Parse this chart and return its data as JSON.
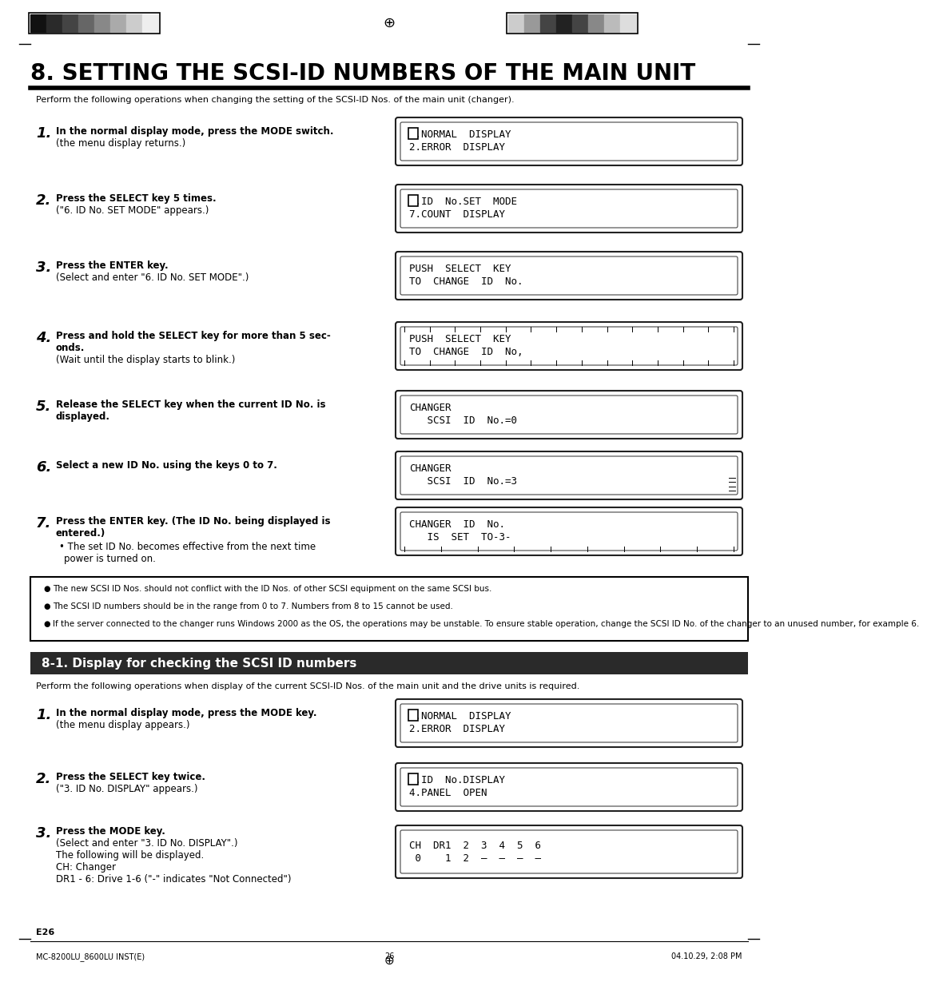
{
  "bg_color": "#ffffff",
  "title": "8. SETTING THE SCSI-ID NUMBERS OF THE MAIN UNIT",
  "subtitle": "Perform the following operations when changing the setting of the SCSI-ID Nos. of the main unit (changer).",
  "notes": [
    "The new SCSI ID Nos. should not conflict with the ID Nos. of other SCSI equipment on the same SCSI bus.",
    "The SCSI ID numbers should be in the range from 0 to 7. Numbers from 8 to 15 cannot be used.",
    "If the server connected to the changer runs Windows 2000 as the OS, the operations may be unstable. To ensure stable operation, change the SCSI ID No. of the changer to an unused number, for example 6."
  ],
  "section2_title": "8-1. Display for checking the SCSI ID numbers",
  "section2_sub": "Perform the following operations when display of the current SCSI-ID Nos. of the main unit and the drive units is required.",
  "footer_left": "MC-8200LU_8600LU INST(E)",
  "footer_center": "26",
  "footer_right": "04.10.29, 2:08 PM",
  "page_label": "E26",
  "bar_colors_left": [
    "#111111",
    "#2a2a2a",
    "#444444",
    "#666666",
    "#888888",
    "#aaaaaa",
    "#cccccc",
    "#eeeeee"
  ],
  "bar_colors_right": [
    "#cccccc",
    "#999999",
    "#444444",
    "#222222",
    "#444444",
    "#888888",
    "#bbbbbb",
    "#dddddd"
  ]
}
